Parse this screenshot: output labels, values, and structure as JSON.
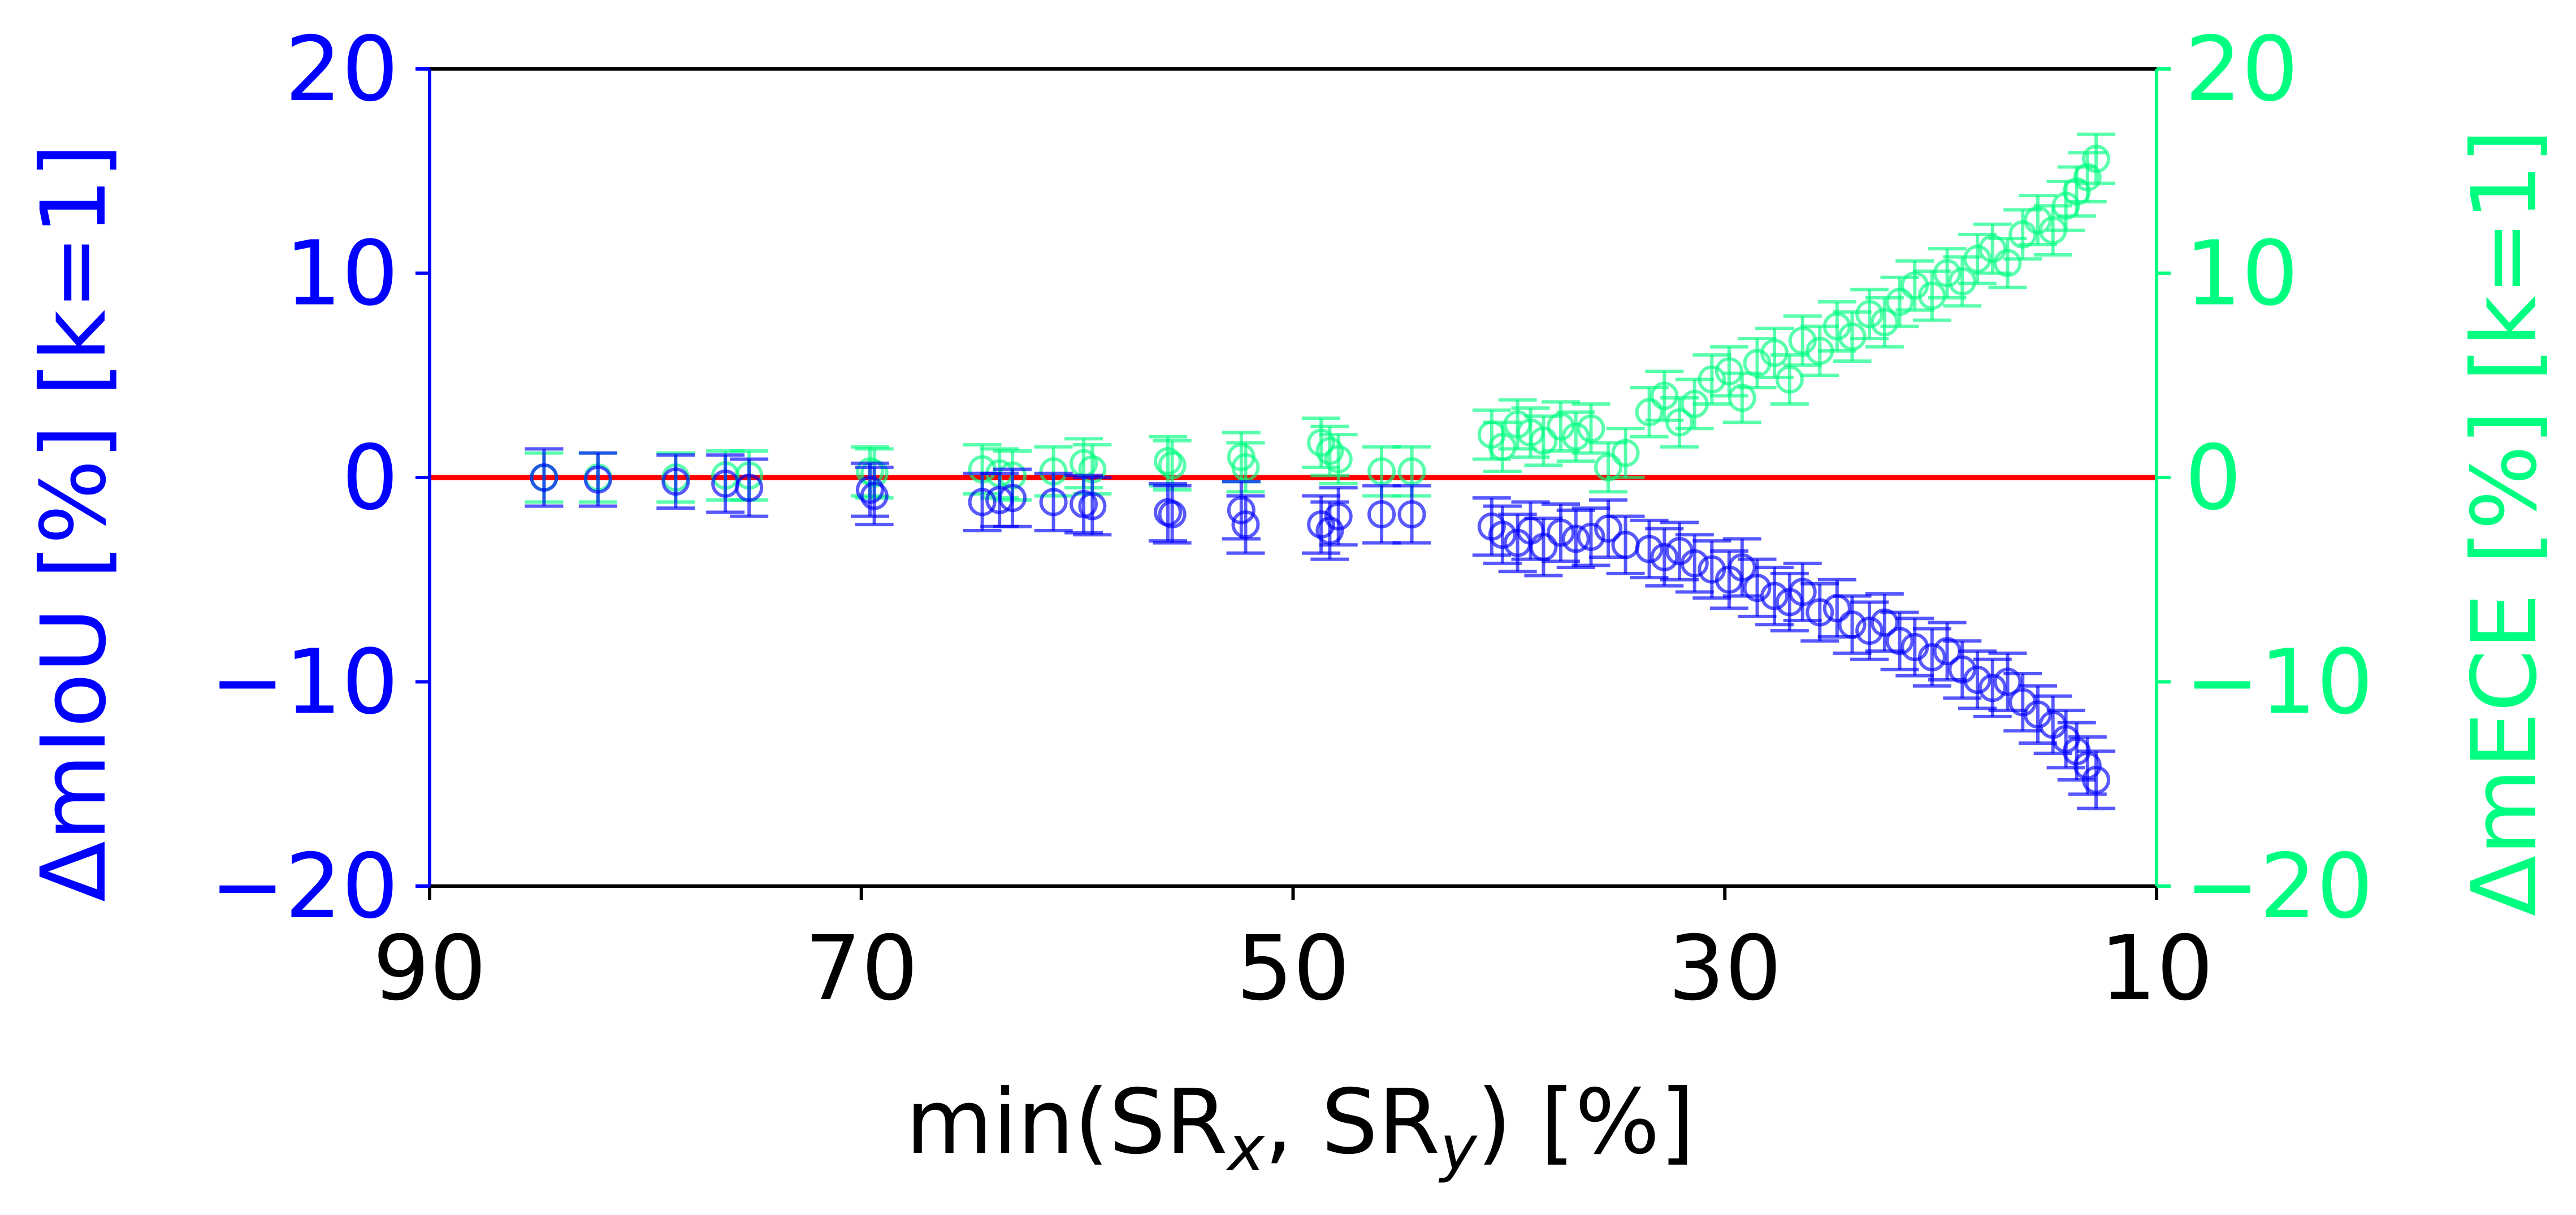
{
  "chart_data": {
    "type": "scatter",
    "xlabel": {
      "prefix": "min(SR",
      "sub1": "x",
      "mid": ", SR",
      "sub2": "y",
      "suffix": ") [%]"
    },
    "ylabel_left": "ΔmIoU [%] [k=1]",
    "ylabel_right": "ΔmECE [%] [k=1]",
    "xlim": [
      90,
      10
    ],
    "ylim": [
      -20,
      20
    ],
    "xticks": [
      "90",
      "70",
      "50",
      "30",
      "10"
    ],
    "xtick_values": [
      90,
      70,
      50,
      30,
      10
    ],
    "yticks": [
      "20",
      "10",
      "0",
      "−10",
      "−20"
    ],
    "ytick_values": [
      20,
      10,
      0,
      -10,
      -20
    ],
    "reference_line": {
      "y": 0,
      "color": "#ff0000"
    },
    "colors": {
      "miou": "#0000ff",
      "mece": "#00ff80",
      "ref": "#ff0000",
      "frame": "#000000"
    },
    "series": [
      {
        "key": "miou",
        "axis": "left",
        "points": [
          {
            "x": 84.7,
            "y": 0.0,
            "err": 1.4
          },
          {
            "x": 82.2,
            "y": -0.1,
            "err": 1.3
          },
          {
            "x": 78.6,
            "y": -0.2,
            "err": 1.3
          },
          {
            "x": 76.3,
            "y": -0.3,
            "err": 1.4
          },
          {
            "x": 75.2,
            "y": -0.5,
            "err": 1.4
          },
          {
            "x": 69.6,
            "y": -0.6,
            "err": 1.3
          },
          {
            "x": 69.4,
            "y": -0.9,
            "err": 1.4
          },
          {
            "x": 64.4,
            "y": -1.2,
            "err": 1.4
          },
          {
            "x": 63.6,
            "y": -1.1,
            "err": 1.3
          },
          {
            "x": 63.0,
            "y": -1.0,
            "err": 1.4
          },
          {
            "x": 61.1,
            "y": -1.2,
            "err": 1.4
          },
          {
            "x": 59.7,
            "y": -1.3,
            "err": 1.4
          },
          {
            "x": 59.3,
            "y": -1.4,
            "err": 1.4
          },
          {
            "x": 55.8,
            "y": -1.7,
            "err": 1.4
          },
          {
            "x": 55.6,
            "y": -1.8,
            "err": 1.4
          },
          {
            "x": 52.4,
            "y": -1.6,
            "err": 1.4
          },
          {
            "x": 52.2,
            "y": -2.3,
            "err": 1.4
          },
          {
            "x": 48.7,
            "y": -2.3,
            "err": 1.4
          },
          {
            "x": 48.3,
            "y": -2.6,
            "err": 1.4
          },
          {
            "x": 47.9,
            "y": -1.9,
            "err": 1.4
          },
          {
            "x": 45.9,
            "y": -1.8,
            "err": 1.4
          },
          {
            "x": 44.5,
            "y": -1.8,
            "err": 1.4
          },
          {
            "x": 40.8,
            "y": -2.4,
            "err": 1.4
          },
          {
            "x": 40.3,
            "y": -2.8,
            "err": 1.4
          },
          {
            "x": 39.6,
            "y": -3.2,
            "err": 1.4
          },
          {
            "x": 39.0,
            "y": -2.6,
            "err": 1.4
          },
          {
            "x": 38.4,
            "y": -3.4,
            "err": 1.4
          },
          {
            "x": 37.6,
            "y": -2.7,
            "err": 1.4
          },
          {
            "x": 36.9,
            "y": -3.0,
            "err": 1.4
          },
          {
            "x": 36.2,
            "y": -2.9,
            "err": 1.4
          },
          {
            "x": 35.4,
            "y": -2.5,
            "err": 1.4
          },
          {
            "x": 34.6,
            "y": -3.3,
            "err": 1.4
          },
          {
            "x": 33.5,
            "y": -3.5,
            "err": 1.4
          },
          {
            "x": 32.8,
            "y": -3.9,
            "err": 1.4
          },
          {
            "x": 32.1,
            "y": -3.6,
            "err": 1.4
          },
          {
            "x": 31.4,
            "y": -4.2,
            "err": 1.4
          },
          {
            "x": 30.6,
            "y": -4.5,
            "err": 1.4
          },
          {
            "x": 29.8,
            "y": -5.0,
            "err": 1.4
          },
          {
            "x": 29.2,
            "y": -4.4,
            "err": 1.4
          },
          {
            "x": 28.5,
            "y": -5.4,
            "err": 1.4
          },
          {
            "x": 27.7,
            "y": -5.8,
            "err": 1.4
          },
          {
            "x": 27.0,
            "y": -6.1,
            "err": 1.4
          },
          {
            "x": 26.4,
            "y": -5.6,
            "err": 1.4
          },
          {
            "x": 25.6,
            "y": -6.6,
            "err": 1.4
          },
          {
            "x": 24.8,
            "y": -6.4,
            "err": 1.4
          },
          {
            "x": 24.1,
            "y": -7.2,
            "err": 1.4
          },
          {
            "x": 23.3,
            "y": -7.5,
            "err": 1.4
          },
          {
            "x": 22.6,
            "y": -7.1,
            "err": 1.4
          },
          {
            "x": 21.9,
            "y": -8.0,
            "err": 1.4
          },
          {
            "x": 21.2,
            "y": -8.3,
            "err": 1.4
          },
          {
            "x": 20.4,
            "y": -8.8,
            "err": 1.4
          },
          {
            "x": 19.7,
            "y": -8.5,
            "err": 1.4
          },
          {
            "x": 19.0,
            "y": -9.4,
            "err": 1.4
          },
          {
            "x": 18.3,
            "y": -9.9,
            "err": 1.4
          },
          {
            "x": 17.6,
            "y": -10.3,
            "err": 1.4
          },
          {
            "x": 16.9,
            "y": -10.0,
            "err": 1.4
          },
          {
            "x": 16.2,
            "y": -11.0,
            "err": 1.4
          },
          {
            "x": 15.5,
            "y": -11.6,
            "err": 1.4
          },
          {
            "x": 14.8,
            "y": -12.1,
            "err": 1.4
          },
          {
            "x": 14.2,
            "y": -12.8,
            "err": 1.4
          },
          {
            "x": 13.7,
            "y": -13.4,
            "err": 1.4
          },
          {
            "x": 13.2,
            "y": -14.1,
            "err": 1.4
          },
          {
            "x": 12.8,
            "y": -14.8,
            "err": 1.4
          }
        ]
      },
      {
        "key": "mece",
        "axis": "right",
        "points": [
          {
            "x": 84.7,
            "y": 0.0,
            "err": 1.2
          },
          {
            "x": 82.2,
            "y": 0.0,
            "err": 1.2
          },
          {
            "x": 78.6,
            "y": 0.0,
            "err": 1.2
          },
          {
            "x": 76.3,
            "y": 0.1,
            "err": 1.2
          },
          {
            "x": 75.2,
            "y": 0.1,
            "err": 1.2
          },
          {
            "x": 69.6,
            "y": 0.3,
            "err": 1.2
          },
          {
            "x": 69.4,
            "y": 0.2,
            "err": 1.2
          },
          {
            "x": 64.4,
            "y": 0.4,
            "err": 1.2
          },
          {
            "x": 63.6,
            "y": 0.2,
            "err": 1.2
          },
          {
            "x": 63.0,
            "y": 0.1,
            "err": 1.2
          },
          {
            "x": 61.1,
            "y": 0.3,
            "err": 1.2
          },
          {
            "x": 59.7,
            "y": 0.7,
            "err": 1.2
          },
          {
            "x": 59.3,
            "y": 0.4,
            "err": 1.2
          },
          {
            "x": 55.8,
            "y": 0.8,
            "err": 1.2
          },
          {
            "x": 55.6,
            "y": 0.6,
            "err": 1.2
          },
          {
            "x": 52.4,
            "y": 1.0,
            "err": 1.2
          },
          {
            "x": 52.2,
            "y": 0.5,
            "err": 1.2
          },
          {
            "x": 48.7,
            "y": 1.7,
            "err": 1.2
          },
          {
            "x": 48.3,
            "y": 1.3,
            "err": 1.2
          },
          {
            "x": 47.9,
            "y": 0.9,
            "err": 1.2
          },
          {
            "x": 45.9,
            "y": 0.3,
            "err": 1.2
          },
          {
            "x": 44.5,
            "y": 0.3,
            "err": 1.2
          },
          {
            "x": 40.8,
            "y": 2.1,
            "err": 1.2
          },
          {
            "x": 40.3,
            "y": 1.5,
            "err": 1.2
          },
          {
            "x": 39.6,
            "y": 2.6,
            "err": 1.2
          },
          {
            "x": 39.0,
            "y": 2.2,
            "err": 1.2
          },
          {
            "x": 38.4,
            "y": 1.8,
            "err": 1.2
          },
          {
            "x": 37.6,
            "y": 2.5,
            "err": 1.2
          },
          {
            "x": 36.9,
            "y": 2.0,
            "err": 1.2
          },
          {
            "x": 36.2,
            "y": 2.4,
            "err": 1.2
          },
          {
            "x": 35.4,
            "y": 0.5,
            "err": 1.2
          },
          {
            "x": 34.6,
            "y": 1.2,
            "err": 1.2
          },
          {
            "x": 33.5,
            "y": 3.2,
            "err": 1.2
          },
          {
            "x": 32.8,
            "y": 4.0,
            "err": 1.2
          },
          {
            "x": 32.1,
            "y": 2.7,
            "err": 1.2
          },
          {
            "x": 31.4,
            "y": 3.6,
            "err": 1.2
          },
          {
            "x": 30.6,
            "y": 4.8,
            "err": 1.2
          },
          {
            "x": 29.8,
            "y": 5.2,
            "err": 1.2
          },
          {
            "x": 29.2,
            "y": 3.9,
            "err": 1.2
          },
          {
            "x": 28.5,
            "y": 5.6,
            "err": 1.2
          },
          {
            "x": 27.7,
            "y": 6.1,
            "err": 1.2
          },
          {
            "x": 27.0,
            "y": 4.8,
            "err": 1.2
          },
          {
            "x": 26.4,
            "y": 6.7,
            "err": 1.2
          },
          {
            "x": 25.6,
            "y": 6.2,
            "err": 1.2
          },
          {
            "x": 24.8,
            "y": 7.4,
            "err": 1.2
          },
          {
            "x": 24.1,
            "y": 6.9,
            "err": 1.2
          },
          {
            "x": 23.3,
            "y": 8.0,
            "err": 1.2
          },
          {
            "x": 22.6,
            "y": 7.6,
            "err": 1.2
          },
          {
            "x": 21.9,
            "y": 8.6,
            "err": 1.2
          },
          {
            "x": 21.2,
            "y": 9.4,
            "err": 1.2
          },
          {
            "x": 20.4,
            "y": 8.9,
            "err": 1.2
          },
          {
            "x": 19.7,
            "y": 10.0,
            "err": 1.2
          },
          {
            "x": 19.0,
            "y": 9.6,
            "err": 1.2
          },
          {
            "x": 18.3,
            "y": 10.7,
            "err": 1.2
          },
          {
            "x": 17.6,
            "y": 11.2,
            "err": 1.2
          },
          {
            "x": 16.9,
            "y": 10.5,
            "err": 1.2
          },
          {
            "x": 16.2,
            "y": 11.9,
            "err": 1.2
          },
          {
            "x": 15.5,
            "y": 12.6,
            "err": 1.2
          },
          {
            "x": 14.8,
            "y": 12.1,
            "err": 1.2
          },
          {
            "x": 14.2,
            "y": 13.3,
            "err": 1.2
          },
          {
            "x": 13.7,
            "y": 14.0,
            "err": 1.2
          },
          {
            "x": 13.2,
            "y": 14.7,
            "err": 1.2
          },
          {
            "x": 12.8,
            "y": 15.6,
            "err": 1.2
          }
        ]
      }
    ]
  }
}
